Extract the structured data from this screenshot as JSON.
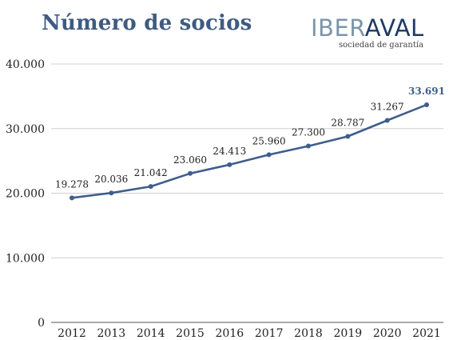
{
  "header": {
    "title": "Número de socios"
  },
  "logo": {
    "part1": "IBER",
    "part2": "AVAL",
    "tagline": "sociedad de garantía",
    "color_part1": "#7c95ab",
    "color_part2": "#1f3a63"
  },
  "colors": {
    "line": "#3f5e8c",
    "grid": "#cfcfcf",
    "text": "#222222"
  },
  "chart_data": {
    "type": "line",
    "x": [
      "2012",
      "2013",
      "2014",
      "2015",
      "2016",
      "2017",
      "2018",
      "2019",
      "2020",
      "2021"
    ],
    "series": [
      {
        "values": [
          19278,
          20036,
          21042,
          23060,
          24413,
          25960,
          27300,
          28787,
          31267,
          33691
        ],
        "labels": [
          "19.278",
          "20.036",
          "21.042",
          "23.060",
          "24.413",
          "25.960",
          "27.300",
          "28.787",
          "31.267",
          "33.691"
        ]
      }
    ],
    "y_ticks": [
      0,
      10000,
      20000,
      30000,
      40000
    ],
    "y_tick_labels": [
      "0",
      "10.000",
      "20.000",
      "30.000",
      "40.000"
    ],
    "ylim": [
      0,
      40000
    ],
    "grid": true,
    "highlight_last_label": true,
    "xlabel": "",
    "ylabel": ""
  }
}
